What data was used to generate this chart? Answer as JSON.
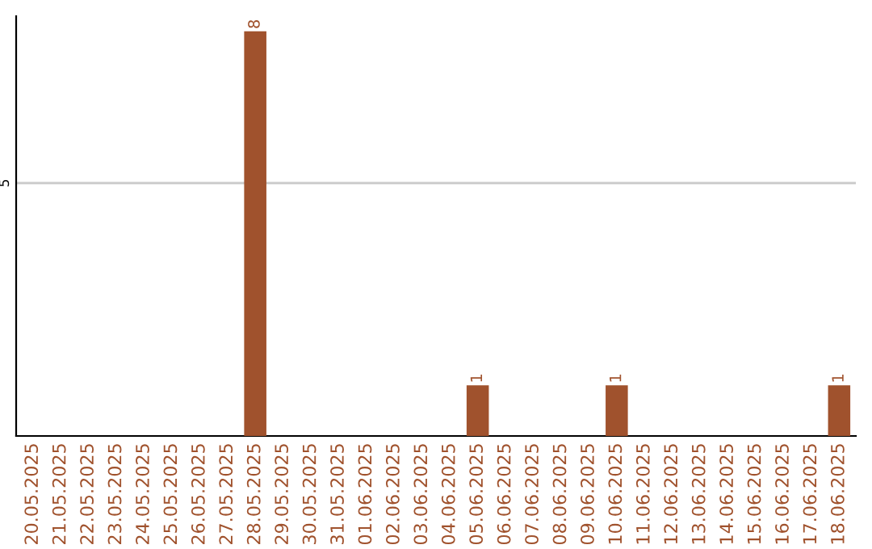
{
  "chart_data": {
    "type": "bar",
    "categories": [
      "20.05.2025",
      "21.05.2025",
      "22.05.2025",
      "23.05.2025",
      "24.05.2025",
      "25.05.2025",
      "26.05.2025",
      "27.05.2025",
      "28.05.2025",
      "29.05.2025",
      "30.05.2025",
      "31.05.2025",
      "01.06.2025",
      "02.06.2025",
      "03.06.2025",
      "04.06.2025",
      "05.06.2025",
      "06.06.2025",
      "07.06.2025",
      "08.06.2025",
      "09.06.2025",
      "10.06.2025",
      "11.06.2025",
      "12.06.2025",
      "13.06.2025",
      "14.06.2025",
      "15.06.2025",
      "16.06.2025",
      "17.06.2025",
      "18.06.2025"
    ],
    "values": [
      0,
      0,
      0,
      0,
      0,
      0,
      0,
      0,
      8,
      0,
      0,
      0,
      0,
      0,
      0,
      0,
      1,
      0,
      0,
      0,
      0,
      1,
      0,
      0,
      0,
      0,
      0,
      0,
      0,
      1
    ],
    "value_labels": [
      null,
      null,
      null,
      null,
      null,
      null,
      null,
      null,
      "8",
      null,
      null,
      null,
      null,
      null,
      null,
      null,
      "1",
      null,
      null,
      null,
      null,
      "1",
      null,
      null,
      null,
      null,
      null,
      null,
      null,
      "1"
    ],
    "color": "#a0522d",
    "ylim": [
      0,
      8.3
    ],
    "yticks": [
      5
    ],
    "grid": "y"
  }
}
